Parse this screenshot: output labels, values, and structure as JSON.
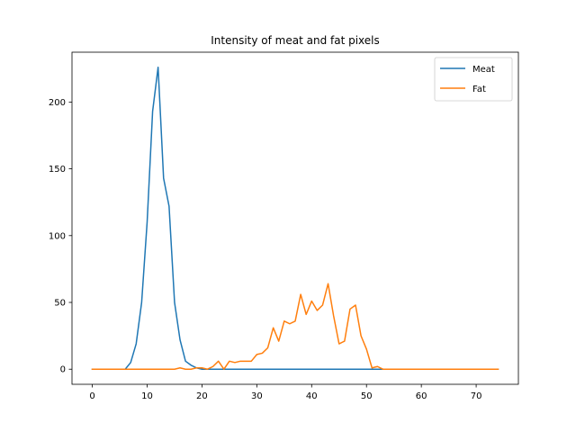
{
  "chart_data": {
    "type": "line",
    "title": "Intensity of meat and fat pixels",
    "xlabel": "",
    "ylabel": "",
    "xlim": [
      -3.7,
      77.7
    ],
    "ylim": [
      -11.3,
      237.3
    ],
    "xticks": [
      0,
      10,
      20,
      30,
      40,
      50,
      60,
      70
    ],
    "yticks": [
      0,
      50,
      100,
      150,
      200
    ],
    "legend_position": "top-right",
    "grid": false,
    "series": [
      {
        "name": "Meat",
        "color": "#1f77b4",
        "x": [
          0,
          1,
          2,
          3,
          4,
          5,
          6,
          7,
          8,
          9,
          10,
          11,
          12,
          13,
          14,
          15,
          16,
          17,
          18,
          19,
          20,
          21,
          22,
          23,
          24,
          25,
          26,
          27,
          28,
          29,
          30,
          31,
          32,
          33,
          34,
          35,
          36,
          37,
          38,
          39,
          40,
          41,
          42,
          43,
          44,
          45,
          46,
          47,
          48,
          49,
          50,
          51,
          52,
          53,
          54,
          55,
          56,
          57,
          58,
          59,
          60,
          61,
          62,
          63,
          64,
          65,
          66,
          67,
          68,
          69,
          70,
          71,
          72,
          73,
          74
        ],
        "values": [
          0,
          0,
          0,
          0,
          0,
          0,
          0,
          5,
          19,
          50,
          110,
          193,
          226,
          143,
          122,
          50,
          22,
          6,
          3,
          1,
          0,
          0,
          0,
          0,
          0,
          0,
          0,
          0,
          0,
          0,
          0,
          0,
          0,
          0,
          0,
          0,
          0,
          0,
          0,
          0,
          0,
          0,
          0,
          0,
          0,
          0,
          0,
          0,
          0,
          0,
          0,
          0,
          0,
          0,
          0,
          0,
          0,
          0,
          0,
          0,
          0,
          0,
          0,
          0,
          0,
          0,
          0,
          0,
          0,
          0,
          0,
          0,
          0,
          0,
          0
        ]
      },
      {
        "name": "Fat",
        "color": "#ff7f0e",
        "x": [
          0,
          1,
          2,
          3,
          4,
          5,
          6,
          7,
          8,
          9,
          10,
          11,
          12,
          13,
          14,
          15,
          16,
          17,
          18,
          19,
          20,
          21,
          22,
          23,
          24,
          25,
          26,
          27,
          28,
          29,
          30,
          31,
          32,
          33,
          34,
          35,
          36,
          37,
          38,
          39,
          40,
          41,
          42,
          43,
          44,
          45,
          46,
          47,
          48,
          49,
          50,
          51,
          52,
          53,
          54,
          55,
          56,
          57,
          58,
          59,
          60,
          61,
          62,
          63,
          64,
          65,
          66,
          67,
          68,
          69,
          70,
          71,
          72,
          73,
          74
        ],
        "values": [
          0,
          0,
          0,
          0,
          0,
          0,
          0,
          0,
          0,
          0,
          0,
          0,
          0,
          0,
          0,
          0,
          1,
          0,
          0,
          1,
          1,
          0,
          2,
          6,
          0,
          6,
          5,
          6,
          6,
          6,
          11,
          12,
          16,
          31,
          21,
          36,
          34,
          36,
          56,
          41,
          51,
          44,
          48,
          64,
          40,
          19,
          21,
          45,
          48,
          25,
          15,
          1,
          2,
          0,
          0,
          0,
          0,
          0,
          0,
          0,
          0,
          0,
          0,
          0,
          0,
          0,
          0,
          0,
          0,
          0,
          0,
          0,
          0,
          0,
          0
        ]
      }
    ]
  }
}
